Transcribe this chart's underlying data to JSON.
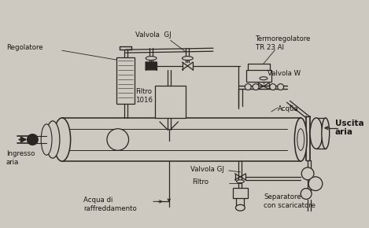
{
  "bg_color": "#cdc9c1",
  "line_color": "#2a2520",
  "text_color": "#1a1510",
  "labels": {
    "regolatore": "Regolatore",
    "valvola_gj_top": "Valvola  GJ",
    "termoregolatore": "Termoregolatore\nTR 23 Al",
    "valvola_w": "Valvola W",
    "filtro_1016": "Filtro\n1016",
    "acqua": "Acqua",
    "uscita_aria": "Uscita\naria",
    "ingresso_aria": "Ingresso\naria",
    "valvola_gj_bottom": "Valvola GJ",
    "filtro_bottom": "Filtro",
    "separatore": "Separatore\ncon scaricatore",
    "acqua_di": "Acqua di\nraffreddamento"
  },
  "figsize": [
    4.69,
    2.9
  ],
  "dpi": 100
}
